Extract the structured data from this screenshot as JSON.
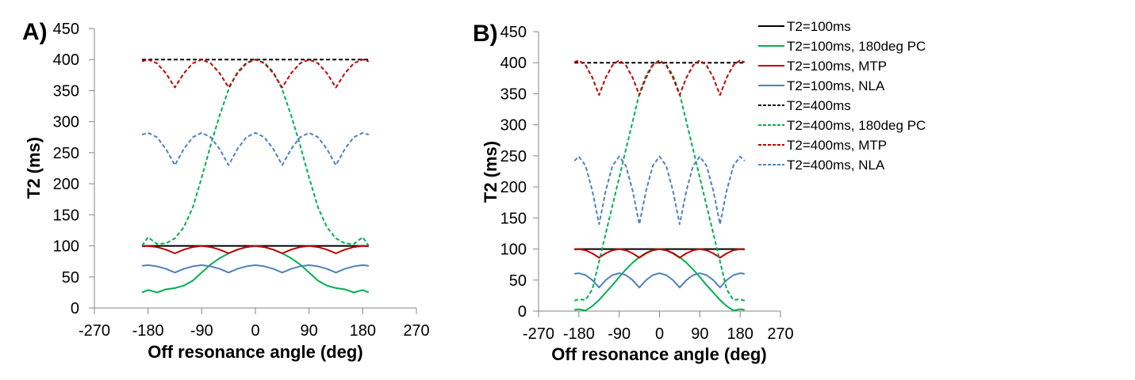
{
  "chart_data": [
    {
      "type": "line",
      "panel_label": "A)",
      "xlabel": "Off resonance angle (deg)",
      "ylabel": "T2 (ms)",
      "xlim": [
        -270,
        270
      ],
      "ylim": [
        0,
        450
      ],
      "xticks": [
        "-270",
        "-180",
        "-90",
        "0",
        "90",
        "180",
        "270"
      ],
      "yticks": [
        "0",
        "50",
        "100",
        "150",
        "200",
        "250",
        "300",
        "350",
        "400",
        "450"
      ],
      "grid": false,
      "x": [
        -190,
        -180,
        -165,
        -150,
        -135,
        -120,
        -105,
        -90,
        -75,
        -60,
        -45,
        -30,
        -15,
        0,
        15,
        30,
        45,
        60,
        75,
        90,
        105,
        120,
        135,
        150,
        165,
        180,
        190
      ],
      "series": [
        {
          "name": "T2=100ms",
          "values": [
            100,
            100,
            100,
            100,
            100,
            100,
            100,
            100,
            100,
            100,
            100,
            100,
            100,
            100,
            100,
            100,
            100,
            100,
            100,
            100,
            100,
            100,
            100,
            100,
            100,
            100,
            100
          ]
        },
        {
          "name": "T2=100ms, 180deg PC",
          "values": [
            25,
            29,
            25,
            30,
            32,
            36,
            44,
            57,
            70,
            80,
            88,
            94,
            98,
            100,
            98,
            94,
            88,
            80,
            70,
            57,
            44,
            36,
            32,
            30,
            25,
            29,
            25
          ]
        },
        {
          "name": "T2=100ms, MTP",
          "values": [
            99,
            100,
            98,
            94,
            88,
            94,
            98,
            100,
            98,
            94,
            88,
            94,
            98,
            100,
            98,
            94,
            88,
            94,
            98,
            100,
            98,
            94,
            88,
            94,
            98,
            100,
            99
          ]
        },
        {
          "name": "T2=100ms, NLA",
          "values": [
            68,
            69,
            67,
            63,
            57,
            63,
            67,
            69,
            67,
            63,
            57,
            63,
            67,
            69,
            67,
            63,
            57,
            63,
            67,
            69,
            67,
            63,
            57,
            63,
            67,
            69,
            68
          ]
        },
        {
          "name": "T2=400ms",
          "values": [
            400,
            400,
            400,
            400,
            400,
            400,
            400,
            400,
            400,
            400,
            400,
            400,
            400,
            400,
            400,
            400,
            400,
            400,
            400,
            400,
            400,
            400,
            400,
            400,
            400,
            400,
            400
          ]
        },
        {
          "name": "T2=400ms, 180deg PC",
          "values": [
            100,
            114,
            103,
            104,
            112,
            130,
            162,
            210,
            262,
            310,
            352,
            380,
            395,
            400,
            395,
            380,
            352,
            310,
            262,
            210,
            162,
            130,
            112,
            104,
            103,
            114,
            100
          ]
        },
        {
          "name": "T2=400ms, MTP",
          "values": [
            397,
            400,
            394,
            378,
            355,
            378,
            394,
            400,
            394,
            378,
            355,
            378,
            394,
            400,
            394,
            378,
            355,
            378,
            394,
            400,
            394,
            378,
            355,
            378,
            394,
            400,
            397
          ]
        },
        {
          "name": "T2=400ms, NLA",
          "values": [
            279,
            282,
            275,
            256,
            230,
            256,
            275,
            282,
            275,
            256,
            230,
            256,
            275,
            282,
            275,
            256,
            230,
            256,
            275,
            282,
            275,
            256,
            230,
            256,
            275,
            282,
            279
          ]
        }
      ]
    },
    {
      "type": "line",
      "panel_label": "B)",
      "xlabel": "Off resonance angle (deg)",
      "ylabel": "T2 (ms)",
      "xlim": [
        -270,
        270
      ],
      "ylim": [
        0,
        450
      ],
      "xticks": [
        "-270",
        "-180",
        "-90",
        "0",
        "90",
        "180",
        "270"
      ],
      "yticks": [
        "0",
        "50",
        "100",
        "150",
        "200",
        "250",
        "300",
        "350",
        "400",
        "450"
      ],
      "grid": false,
      "legend_position": "right",
      "x": [
        -190,
        -180,
        -165,
        -150,
        -135,
        -120,
        -105,
        -90,
        -75,
        -60,
        -45,
        -30,
        -15,
        0,
        15,
        30,
        45,
        60,
        75,
        90,
        105,
        120,
        135,
        150,
        165,
        180,
        190
      ],
      "series": [
        {
          "name": "T2=100ms",
          "values": [
            100,
            100,
            100,
            100,
            100,
            100,
            100,
            100,
            100,
            100,
            100,
            100,
            100,
            100,
            100,
            100,
            100,
            100,
            100,
            100,
            100,
            100,
            100,
            100,
            100,
            100,
            100
          ]
        },
        {
          "name": "T2=100ms, 180deg PC",
          "values": [
            2,
            3,
            1,
            8,
            18,
            30,
            42,
            55,
            67,
            78,
            87,
            94,
            98,
            100,
            98,
            94,
            87,
            78,
            67,
            55,
            42,
            30,
            18,
            8,
            1,
            3,
            2
          ]
        },
        {
          "name": "T2=100ms, MTP",
          "values": [
            99,
            100,
            98,
            93,
            86,
            93,
            98,
            100,
            98,
            93,
            86,
            93,
            98,
            100,
            98,
            93,
            86,
            93,
            98,
            100,
            98,
            93,
            86,
            93,
            98,
            100,
            99
          ]
        },
        {
          "name": "T2=100ms, NLA",
          "values": [
            60,
            61,
            58,
            50,
            38,
            50,
            58,
            61,
            58,
            50,
            38,
            50,
            58,
            61,
            58,
            50,
            38,
            50,
            58,
            61,
            58,
            50,
            38,
            50,
            58,
            61,
            60
          ]
        },
        {
          "name": "T2=400ms",
          "values": [
            400,
            400,
            400,
            400,
            400,
            400,
            400,
            400,
            400,
            400,
            400,
            400,
            400,
            400,
            400,
            400,
            400,
            400,
            400,
            400,
            400,
            400,
            400,
            400,
            400,
            400,
            400
          ]
        },
        {
          "name": "T2=400ms, 180deg PC",
          "values": [
            17,
            19,
            18,
            35,
            80,
            125,
            170,
            215,
            260,
            305,
            350,
            380,
            397,
            402,
            397,
            380,
            350,
            305,
            260,
            215,
            170,
            125,
            80,
            35,
            18,
            19,
            17
          ]
        },
        {
          "name": "T2=400ms, MTP",
          "values": [
            401,
            404,
            396,
            376,
            348,
            376,
            396,
            404,
            396,
            376,
            348,
            376,
            396,
            404,
            396,
            376,
            348,
            376,
            396,
            404,
            396,
            376,
            348,
            376,
            396,
            404,
            401
          ]
        },
        {
          "name": "T2=400ms, NLA",
          "values": [
            242,
            249,
            234,
            194,
            140,
            194,
            234,
            249,
            234,
            194,
            140,
            194,
            234,
            249,
            234,
            194,
            140,
            194,
            234,
            249,
            234,
            194,
            140,
            194,
            234,
            249,
            242
          ]
        }
      ]
    }
  ],
  "legend": [
    {
      "label": "T2=100ms",
      "color": "#000000",
      "dashed": false
    },
    {
      "label": "T2=100ms, 180deg PC",
      "color": "#00b050",
      "dashed": false
    },
    {
      "label": "T2=100ms, MTP",
      "color": "#c00000",
      "dashed": false
    },
    {
      "label": "T2=100ms, NLA",
      "color": "#4f81bd",
      "dashed": false
    },
    {
      "label": "T2=400ms",
      "color": "#000000",
      "dashed": true
    },
    {
      "label": "T2=400ms, 180deg PC",
      "color": "#00b050",
      "dashed": true
    },
    {
      "label": "T2=400ms, MTP",
      "color": "#c00000",
      "dashed": true
    },
    {
      "label": "T2=400ms, NLA",
      "color": "#4f81bd",
      "dashed": true
    }
  ]
}
